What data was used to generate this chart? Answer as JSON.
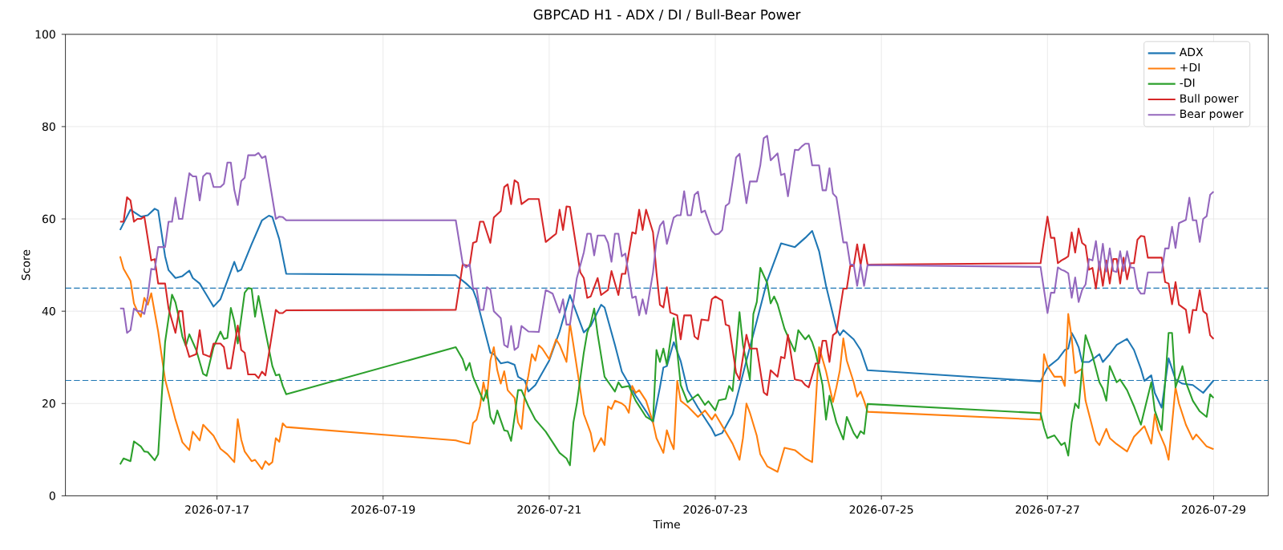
{
  "chart_data": {
    "type": "line",
    "title": "GBPCAD H1 - ADX / DI / Bull-Bear Power",
    "xlabel": "Time",
    "ylabel": "Score",
    "xlim": [
      "2026-07-15T04:12",
      "2026-07-29T15:48"
    ],
    "ylim": [
      0,
      100
    ],
    "xticks": [
      "2026-07-17",
      "2026-07-19",
      "2026-07-21",
      "2026-07-23",
      "2026-07-25",
      "2026-07-27",
      "2026-07-29"
    ],
    "yticks": [
      0,
      20,
      40,
      60,
      80,
      100
    ],
    "grid": true,
    "legend": "top right",
    "ref_lines": [
      {
        "axis": "y",
        "value": 45,
        "color": "#1f77b4",
        "line_style": "dashed"
      },
      {
        "axis": "y",
        "value": 25,
        "color": "#1f77b4",
        "line_style": "dashed"
      }
    ],
    "series": [
      {
        "name": "ADX",
        "color": "#1f77b4",
        "x": [
          "2026-07-15T20:00",
          "2026-07-15T23:00",
          "2026-07-16T02:00",
          "2026-07-16T04:00",
          "2026-07-16T06:00",
          "2026-07-16T07:00",
          "2026-07-16T09:00",
          "2026-07-16T10:00",
          "2026-07-16T12:00",
          "2026-07-16T14:00",
          "2026-07-16T16:00",
          "2026-07-16T17:00",
          "2026-07-16T19:00",
          "2026-07-16T21:00",
          "2026-07-16T23:00",
          "2026-07-17T01:00",
          "2026-07-17T03:00",
          "2026-07-17T05:00",
          "2026-07-17T06:00",
          "2026-07-17T07:00",
          "2026-07-17T10:00",
          "2026-07-17T13:00",
          "2026-07-17T15:00",
          "2026-07-17T16:00",
          "2026-07-17T18:00",
          "2026-07-17T20:00",
          "2026-07-19T21:00",
          "2026-07-20T00:00",
          "2026-07-20T02:00",
          "2026-07-20T03:00",
          "2026-07-20T05:00",
          "2026-07-20T07:00",
          "2026-07-20T08:00",
          "2026-07-20T10:00",
          "2026-07-20T12:00",
          "2026-07-20T14:00",
          "2026-07-20T15:00",
          "2026-07-20T17:00",
          "2026-07-20T18:00",
          "2026-07-20T20:00",
          "2026-07-21T00:00",
          "2026-07-21T03:00",
          "2026-07-21T06:00",
          "2026-07-21T09:00",
          "2026-07-21T10:00",
          "2026-07-21T12:00",
          "2026-07-21T15:00",
          "2026-07-21T16:00",
          "2026-07-21T19:00",
          "2026-07-21T21:00",
          "2026-07-22T01:00",
          "2026-07-22T04:00",
          "2026-07-22T06:00",
          "2026-07-22T08:00",
          "2026-07-22T09:00",
          "2026-07-22T10:00",
          "2026-07-22T12:00",
          "2026-07-22T14:00",
          "2026-07-22T16:00",
          "2026-07-22T19:00",
          "2026-07-22T21:00",
          "2026-07-22T23:00",
          "2026-07-23T00:00",
          "2026-07-23T02:00",
          "2026-07-23T05:00",
          "2026-07-23T09:00",
          "2026-07-23T12:00",
          "2026-07-23T15:00",
          "2026-07-23T19:00",
          "2026-07-23T23:00",
          "2026-07-24T02:00",
          "2026-07-24T04:00",
          "2026-07-24T06:00",
          "2026-07-24T08:00",
          "2026-07-24T11:00",
          "2026-07-24T12:00",
          "2026-07-24T13:00",
          "2026-07-24T16:00",
          "2026-07-24T18:00",
          "2026-07-24T20:00",
          "2026-07-26T22:00",
          "2026-07-27T00:00",
          "2026-07-27T03:00",
          "2026-07-27T05:00",
          "2026-07-27T06:00",
          "2026-07-27T07:00",
          "2026-07-27T08:00",
          "2026-07-27T09:00",
          "2026-07-27T10:00",
          "2026-07-27T12:00",
          "2026-07-27T14:00",
          "2026-07-27T15:00",
          "2026-07-27T16:00",
          "2026-07-27T18:00",
          "2026-07-27T20:00",
          "2026-07-27T23:00",
          "2026-07-28T01:00",
          "2026-07-28T03:00",
          "2026-07-28T04:00",
          "2026-07-28T06:00",
          "2026-07-28T07:00",
          "2026-07-28T09:00",
          "2026-07-28T11:00",
          "2026-07-28T13:00",
          "2026-07-28T15:00",
          "2026-07-28T18:00",
          "2026-07-28T21:00",
          "2026-07-29T00:00"
        ],
        "values": [
          57.6,
          62.0,
          60.5,
          60.8,
          62.2,
          61.8,
          51.9,
          48.9,
          47.2,
          47.6,
          48.8,
          47.2,
          46.0,
          43.5,
          41.0,
          42.6,
          46.6,
          50.7,
          48.6,
          49.0,
          54.5,
          59.7,
          60.7,
          60.4,
          55.6,
          48.1,
          47.8,
          46.0,
          44.6,
          42.6,
          36.8,
          31.0,
          30.7,
          28.7,
          29.0,
          28.4,
          25.8,
          24.9,
          22.6,
          24.0,
          29.3,
          35.6,
          43.5,
          37.4,
          35.4,
          36.8,
          41.4,
          40.8,
          32.7,
          26.9,
          21.7,
          18.3,
          15.9,
          23.5,
          27.8,
          28.1,
          33.3,
          29.2,
          22.9,
          19.1,
          16.8,
          14.5,
          13.0,
          13.6,
          17.7,
          29.3,
          37.9,
          46.6,
          54.7,
          53.9,
          55.9,
          57.4,
          53.0,
          45.5,
          36.2,
          34.8,
          35.9,
          33.9,
          31.6,
          27.2,
          24.8,
          27.8,
          29.6,
          31.6,
          31.9,
          35.3,
          33.9,
          32.2,
          29.0,
          29.0,
          30.1,
          30.7,
          29.0,
          30.7,
          32.7,
          34.0,
          31.6,
          27.5,
          24.9,
          26.1,
          22.3,
          19.1,
          29.8,
          25.2,
          24.3,
          24.0,
          22.3,
          25.0
        ]
      },
      {
        "name": "+DI",
        "color": "#ff7f0e",
        "x": [
          "2026-07-15T20:00",
          "2026-07-15T21:00",
          "2026-07-15T23:00",
          "2026-07-16T00:00",
          "2026-07-16T01:00",
          "2026-07-16T02:00",
          "2026-07-16T03:00",
          "2026-07-16T04:00",
          "2026-07-16T05:00",
          "2026-07-16T07:00",
          "2026-07-16T09:00",
          "2026-07-16T12:00",
          "2026-07-16T14:00",
          "2026-07-16T16:00",
          "2026-07-16T17:00",
          "2026-07-16T19:00",
          "2026-07-16T20:00",
          "2026-07-16T23:00",
          "2026-07-17T01:00",
          "2026-07-17T03:00",
          "2026-07-17T05:00",
          "2026-07-17T06:00",
          "2026-07-17T07:00",
          "2026-07-17T08:00",
          "2026-07-17T10:00",
          "2026-07-17T11:00",
          "2026-07-17T13:00",
          "2026-07-17T14:00",
          "2026-07-17T15:00",
          "2026-07-17T16:00",
          "2026-07-17T17:00",
          "2026-07-17T18:00",
          "2026-07-17T19:00",
          "2026-07-17T20:00",
          "2026-07-19T21:00",
          "2026-07-19T22:00",
          "2026-07-20T00:00",
          "2026-07-20T01:00",
          "2026-07-20T02:00",
          "2026-07-20T03:00",
          "2026-07-20T04:00",
          "2026-07-20T05:00",
          "2026-07-20T06:00",
          "2026-07-20T07:00",
          "2026-07-20T08:00",
          "2026-07-20T09:00",
          "2026-07-20T10:00",
          "2026-07-20T11:00",
          "2026-07-20T12:00",
          "2026-07-20T14:00",
          "2026-07-20T15:00",
          "2026-07-20T16:00",
          "2026-07-20T17:00",
          "2026-07-20T18:00",
          "2026-07-20T19:00",
          "2026-07-20T20:00",
          "2026-07-20T21:00",
          "2026-07-20T22:00",
          "2026-07-21T00:00",
          "2026-07-21T02:00",
          "2026-07-21T03:00",
          "2026-07-21T05:00",
          "2026-07-21T06:00",
          "2026-07-21T07:00",
          "2026-07-21T09:00",
          "2026-07-21T10:00",
          "2026-07-21T12:00",
          "2026-07-21T13:00",
          "2026-07-21T15:00",
          "2026-07-21T16:00",
          "2026-07-21T17:00",
          "2026-07-21T18:00",
          "2026-07-21T19:00",
          "2026-07-21T21:00",
          "2026-07-21T22:00",
          "2026-07-21T23:00",
          "2026-07-22T00:00",
          "2026-07-22T01:00",
          "2026-07-22T02:00",
          "2026-07-22T04:00",
          "2026-07-22T06:00",
          "2026-07-22T07:00",
          "2026-07-22T09:00",
          "2026-07-22T10:00",
          "2026-07-22T11:00",
          "2026-07-22T12:00",
          "2026-07-22T13:00",
          "2026-07-22T14:00",
          "2026-07-22T16:00",
          "2026-07-22T19:00",
          "2026-07-22T21:00",
          "2026-07-22T23:00",
          "2026-07-23T00:00",
          "2026-07-23T05:00",
          "2026-07-23T07:00",
          "2026-07-23T08:00",
          "2026-07-23T09:00",
          "2026-07-23T10:00",
          "2026-07-23T12:00",
          "2026-07-23T13:00",
          "2026-07-23T15:00",
          "2026-07-23T18:00",
          "2026-07-23T20:00",
          "2026-07-23T23:00",
          "2026-07-24T02:00",
          "2026-07-24T04:00",
          "2026-07-24T06:00",
          "2026-07-24T08:00",
          "2026-07-24T10:00",
          "2026-07-24T11:00",
          "2026-07-24T12:00",
          "2026-07-24T13:00",
          "2026-07-24T14:00",
          "2026-07-24T16:00",
          "2026-07-24T17:00",
          "2026-07-24T18:00",
          "2026-07-24T19:00",
          "2026-07-24T20:00",
          "2026-07-26T22:00",
          "2026-07-26T23:00",
          "2026-07-27T00:00",
          "2026-07-27T02:00",
          "2026-07-27T04:00",
          "2026-07-27T05:00",
          "2026-07-27T06:00",
          "2026-07-27T07:00",
          "2026-07-27T08:00",
          "2026-07-27T10:00",
          "2026-07-27T11:00",
          "2026-07-27T14:00",
          "2026-07-27T15:00",
          "2026-07-27T17:00",
          "2026-07-27T18:00",
          "2026-07-27T20:00",
          "2026-07-27T23:00",
          "2026-07-28T01:00",
          "2026-07-28T04:00",
          "2026-07-28T06:00",
          "2026-07-28T07:00",
          "2026-07-28T08:00",
          "2026-07-28T10:00",
          "2026-07-28T11:00",
          "2026-07-28T13:00",
          "2026-07-28T14:00",
          "2026-07-28T16:00",
          "2026-07-28T18:00",
          "2026-07-28T19:00",
          "2026-07-28T22:00",
          "2026-07-29T00:00"
        ],
        "values": [
          51.9,
          49.2,
          46.6,
          41.7,
          40.0,
          38.8,
          42.9,
          41.4,
          43.9,
          35.6,
          25.2,
          16.5,
          11.6,
          9.9,
          13.9,
          12.0,
          15.4,
          13.0,
          10.2,
          9.0,
          7.3,
          16.6,
          12.2,
          9.6,
          7.5,
          7.8,
          5.8,
          7.5,
          6.7,
          7.3,
          12.5,
          11.7,
          15.7,
          14.9,
          12.0,
          11.8,
          11.4,
          11.3,
          15.8,
          16.5,
          19.4,
          24.6,
          21.2,
          29.3,
          32.2,
          27.2,
          24.3,
          27.0,
          22.9,
          21.2,
          15.9,
          14.5,
          22.3,
          26.1,
          30.7,
          29.3,
          32.6,
          31.9,
          29.6,
          33.9,
          32.7,
          29.0,
          37.4,
          32.7,
          22.9,
          17.7,
          13.6,
          9.6,
          12.5,
          11.0,
          19.4,
          18.8,
          20.6,
          20.0,
          19.4,
          18.0,
          23.8,
          22.3,
          22.9,
          20.6,
          15.9,
          12.5,
          9.3,
          14.2,
          11.9,
          10.1,
          24.9,
          20.6,
          19.4,
          17.1,
          18.5,
          16.5,
          17.7,
          11.3,
          7.8,
          12.5,
          20.0,
          18.0,
          13.0,
          9.0,
          6.4,
          5.2,
          10.4,
          9.9,
          8.1,
          7.3,
          32.2,
          27.0,
          20.3,
          23.5,
          27.2,
          34.1,
          29.3,
          24.6,
          21.5,
          22.6,
          20.6,
          18.2,
          16.5,
          30.7,
          28.1,
          25.8,
          25.8,
          23.8,
          39.4,
          34.2,
          26.6,
          27.5,
          20.6,
          11.9,
          11.0,
          14.5,
          12.5,
          11.2,
          9.6,
          12.8,
          15.1,
          11.3,
          17.7,
          14.2,
          10.7,
          7.8,
          23.5,
          20.0,
          15.4,
          12.2,
          13.3,
          10.7,
          10.1
        ]
      },
      {
        "name": "-DI",
        "color": "#2ca02c",
        "x": [
          "2026-07-15T20:00",
          "2026-07-15T21:00",
          "2026-07-15T23:00",
          "2026-07-16T00:00",
          "2026-07-16T02:00",
          "2026-07-16T03:00",
          "2026-07-16T04:00",
          "2026-07-16T06:00",
          "2026-07-16T07:00",
          "2026-07-16T09:00",
          "2026-07-16T11:00",
          "2026-07-16T12:00",
          "2026-07-16T13:00",
          "2026-07-16T14:00",
          "2026-07-16T15:00",
          "2026-07-16T16:00",
          "2026-07-16T18:00",
          "2026-07-16T20:00",
          "2026-07-16T21:00",
          "2026-07-16T23:00",
          "2026-07-17T01:00",
          "2026-07-17T02:00",
          "2026-07-17T03:00",
          "2026-07-17T04:00",
          "2026-07-17T05:00",
          "2026-07-17T06:00",
          "2026-07-17T08:00",
          "2026-07-17T09:00",
          "2026-07-17T10:00",
          "2026-07-17T11:00",
          "2026-07-17T12:00",
          "2026-07-17T14:00",
          "2026-07-17T16:00",
          "2026-07-17T17:00",
          "2026-07-17T18:00",
          "2026-07-17T19:00",
          "2026-07-17T20:00",
          "2026-07-19T21:00",
          "2026-07-19T23:00",
          "2026-07-20T00:00",
          "2026-07-20T01:00",
          "2026-07-20T02:00",
          "2026-07-20T04:00",
          "2026-07-20T05:00",
          "2026-07-20T06:00",
          "2026-07-20T07:00",
          "2026-07-20T08:00",
          "2026-07-20T09:00",
          "2026-07-20T11:00",
          "2026-07-20T12:00",
          "2026-07-20T13:00",
          "2026-07-20T14:00",
          "2026-07-20T15:00",
          "2026-07-20T16:00",
          "2026-07-20T18:00",
          "2026-07-20T20:00",
          "2026-07-20T23:00",
          "2026-07-21T01:00",
          "2026-07-21T03:00",
          "2026-07-21T05:00",
          "2026-07-21T06:00",
          "2026-07-21T07:00",
          "2026-07-21T08:00",
          "2026-07-21T10:00",
          "2026-07-21T11:00",
          "2026-07-21T12:00",
          "2026-07-21T13:00",
          "2026-07-21T14:00",
          "2026-07-21T16:00",
          "2026-07-21T19:00",
          "2026-07-21T20:00",
          "2026-07-21T21:00",
          "2026-07-21T23:00",
          "2026-07-22T01:00",
          "2026-07-22T04:00",
          "2026-07-22T06:00",
          "2026-07-22T07:00",
          "2026-07-22T08:00",
          "2026-07-22T09:00",
          "2026-07-22T10:00",
          "2026-07-22T12:00",
          "2026-07-22T14:00",
          "2026-07-22T16:00",
          "2026-07-22T19:00",
          "2026-07-22T21:00",
          "2026-07-22T22:00",
          "2026-07-23T00:00",
          "2026-07-23T01:00",
          "2026-07-23T03:00",
          "2026-07-23T04:00",
          "2026-07-23T05:00",
          "2026-07-23T06:00",
          "2026-07-23T07:00",
          "2026-07-23T08:00",
          "2026-07-23T10:00",
          "2026-07-23T11:00",
          "2026-07-23T12:00",
          "2026-07-23T13:00",
          "2026-07-23T15:00",
          "2026-07-23T16:00",
          "2026-07-23T17:00",
          "2026-07-23T18:00",
          "2026-07-23T20:00",
          "2026-07-23T21:00",
          "2026-07-23T23:00",
          "2026-07-24T00:00",
          "2026-07-24T02:00",
          "2026-07-24T03:00",
          "2026-07-24T04:00",
          "2026-07-24T05:00",
          "2026-07-24T07:00",
          "2026-07-24T08:00",
          "2026-07-24T09:00",
          "2026-07-24T11:00",
          "2026-07-24T13:00",
          "2026-07-24T14:00",
          "2026-07-24T16:00",
          "2026-07-24T17:00",
          "2026-07-24T18:00",
          "2026-07-24T19:00",
          "2026-07-24T20:00",
          "2026-07-26T22:00",
          "2026-07-26T23:00",
          "2026-07-27T00:00",
          "2026-07-27T02:00",
          "2026-07-27T04:00",
          "2026-07-27T05:00",
          "2026-07-27T06:00",
          "2026-07-27T07:00",
          "2026-07-27T08:00",
          "2026-07-27T09:00",
          "2026-07-27T10:00",
          "2026-07-27T11:00",
          "2026-07-27T13:00",
          "2026-07-27T15:00",
          "2026-07-27T16:00",
          "2026-07-27T17:00",
          "2026-07-27T18:00",
          "2026-07-27T20:00",
          "2026-07-27T21:00",
          "2026-07-27T23:00",
          "2026-07-28T01:00",
          "2026-07-28T03:00",
          "2026-07-28T06:00",
          "2026-07-28T07:00",
          "2026-07-28T09:00",
          "2026-07-28T11:00",
          "2026-07-28T12:00",
          "2026-07-28T13:00",
          "2026-07-28T15:00",
          "2026-07-28T16:00",
          "2026-07-28T18:00",
          "2026-07-28T20:00",
          "2026-07-28T22:00",
          "2026-07-28T23:00",
          "2026-07-29T00:00"
        ],
        "values": [
          6.8,
          8.1,
          7.5,
          11.8,
          10.7,
          9.6,
          9.5,
          7.7,
          9.0,
          33.3,
          43.6,
          41.9,
          38.5,
          34.5,
          32.5,
          35.0,
          31.6,
          26.4,
          26.0,
          32.2,
          35.6,
          34.0,
          34.2,
          40.7,
          37.8,
          33.0,
          44.0,
          45.0,
          44.9,
          38.8,
          43.3,
          35.6,
          28.1,
          26.1,
          26.3,
          23.8,
          22.0,
          32.2,
          29.6,
          27.2,
          28.8,
          25.8,
          22.3,
          20.6,
          22.9,
          17.1,
          15.6,
          18.5,
          14.2,
          14.0,
          11.9,
          17.1,
          22.9,
          22.9,
          19.4,
          16.5,
          13.9,
          11.6,
          9.3,
          8.1,
          6.6,
          15.9,
          20.0,
          31.0,
          35.4,
          37.4,
          40.6,
          35.0,
          25.8,
          22.6,
          24.6,
          23.5,
          23.8,
          20.6,
          17.1,
          16.2,
          31.6,
          29.0,
          31.9,
          28.4,
          38.5,
          24.0,
          20.3,
          22.0,
          19.7,
          20.5,
          18.5,
          20.7,
          21.0,
          23.8,
          22.7,
          31.0,
          39.8,
          32.7,
          25.2,
          39.4,
          42.0,
          49.4,
          46.1,
          41.7,
          43.2,
          41.5,
          36.2,
          34.5,
          31.3,
          35.9,
          33.9,
          34.8,
          33.3,
          31.0,
          24.0,
          16.5,
          21.7,
          15.9,
          12.2,
          17.1,
          13.6,
          12.5,
          14.0,
          13.4,
          19.9,
          17.9,
          14.8,
          12.5,
          13.1,
          11.0,
          11.5,
          8.7,
          15.9,
          20.0,
          19.0,
          27.5,
          34.8,
          30.4,
          24.6,
          23.2,
          20.6,
          28.1,
          24.6,
          25.2,
          22.9,
          19.4,
          15.4,
          24.6,
          18.5,
          14.2,
          35.3,
          35.3,
          23.5,
          28.1,
          24.6,
          20.6,
          18.3,
          17.1,
          22.0,
          21.2
        ]
      },
      {
        "name": "Bull power",
        "color": "#d62728",
        "x": [
          "2026-07-15T20:00",
          "2026-07-15T21:00",
          "2026-07-15T22:00",
          "2026-07-15T23:00",
          "2026-07-16T00:00",
          "2026-07-16T01:00",
          "2026-07-16T02:00",
          "2026-07-16T03:00",
          "2026-07-16T05:00",
          "2026-07-16T06:00",
          "2026-07-16T07:00",
          "2026-07-16T09:00",
          "2026-07-16T10:00",
          "2026-07-16T12:00",
          "2026-07-16T13:00",
          "2026-07-16T14:00",
          "2026-07-16T15:00",
          "2026-07-16T16:00",
          "2026-07-16T18:00",
          "2026-07-16T19:00",
          "2026-07-16T20:00",
          "2026-07-16T22:00",
          "2026-07-16T23:00",
          "2026-07-17T01:00",
          "2026-07-17T02:00",
          "2026-07-17T03:00",
          "2026-07-17T04:00",
          "2026-07-17T06:00",
          "2026-07-17T07:00",
          "2026-07-17T08:00",
          "2026-07-17T09:00",
          "2026-07-17T11:00",
          "2026-07-17T12:00",
          "2026-07-17T13:00",
          "2026-07-17T14:00",
          "2026-07-17T17:00",
          "2026-07-17T18:00",
          "2026-07-17T19:00",
          "2026-07-17T20:00",
          "2026-07-19T21:00",
          "2026-07-19T23:00",
          "2026-07-20T01:00",
          "2026-07-20T02:00",
          "2026-07-20T03:00",
          "2026-07-20T04:00",
          "2026-07-20T05:00",
          "2026-07-20T07:00",
          "2026-07-20T08:00",
          "2026-07-20T10:00",
          "2026-07-20T11:00",
          "2026-07-20T12:00",
          "2026-07-20T13:00",
          "2026-07-20T14:00",
          "2026-07-20T15:00",
          "2026-07-20T16:00",
          "2026-07-20T18:00",
          "2026-07-20T21:00",
          "2026-07-20T23:00",
          "2026-07-21T01:00",
          "2026-07-21T02:00",
          "2026-07-21T03:00",
          "2026-07-21T04:00",
          "2026-07-21T05:00",
          "2026-07-21T06:00",
          "2026-07-21T09:00",
          "2026-07-21T10:00",
          "2026-07-21T11:00",
          "2026-07-21T12:00",
          "2026-07-21T14:00",
          "2026-07-21T15:00",
          "2026-07-21T17:00",
          "2026-07-21T18:00",
          "2026-07-21T20:00",
          "2026-07-21T21:00",
          "2026-07-21T22:00",
          "2026-07-22T00:00",
          "2026-07-22T01:00",
          "2026-07-22T02:00",
          "2026-07-22T03:00",
          "2026-07-22T04:00",
          "2026-07-22T06:00",
          "2026-07-22T07:00",
          "2026-07-22T08:00",
          "2026-07-22T09:00",
          "2026-07-22T10:00",
          "2026-07-22T11:00",
          "2026-07-22T13:00",
          "2026-07-22T14:00",
          "2026-07-22T15:00",
          "2026-07-22T17:00",
          "2026-07-22T18:00",
          "2026-07-22T19:00",
          "2026-07-22T20:00",
          "2026-07-22T22:00",
          "2026-07-22T23:00",
          "2026-07-23T00:00",
          "2026-07-23T02:00",
          "2026-07-23T03:00",
          "2026-07-23T04:00",
          "2026-07-23T06:00",
          "2026-07-23T07:00",
          "2026-07-23T09:00",
          "2026-07-23T10:00",
          "2026-07-23T12:00",
          "2026-07-23T14:00",
          "2026-07-23T15:00",
          "2026-07-23T16:00",
          "2026-07-23T18:00",
          "2026-07-23T19:00",
          "2026-07-23T20:00",
          "2026-07-23T21:00",
          "2026-07-23T23:00",
          "2026-07-24T01:00",
          "2026-07-24T02:00",
          "2026-07-24T03:00",
          "2026-07-24T05:00",
          "2026-07-24T06:00",
          "2026-07-24T07:00",
          "2026-07-24T08:00",
          "2026-07-24T09:00",
          "2026-07-24T10:00",
          "2026-07-24T11:00",
          "2026-07-24T13:00",
          "2026-07-24T14:00",
          "2026-07-24T15:00",
          "2026-07-24T16:00",
          "2026-07-24T17:00",
          "2026-07-24T18:00",
          "2026-07-24T19:00",
          "2026-07-24T20:00",
          "2026-07-26T22:00",
          "2026-07-27T00:00",
          "2026-07-27T01:00",
          "2026-07-27T02:00",
          "2026-07-27T03:00",
          "2026-07-27T04:00",
          "2026-07-27T05:00",
          "2026-07-27T06:00",
          "2026-07-27T07:00",
          "2026-07-27T08:00",
          "2026-07-27T09:00",
          "2026-07-27T10:00",
          "2026-07-27T11:00",
          "2026-07-27T12:00",
          "2026-07-27T13:00",
          "2026-07-27T14:00",
          "2026-07-27T15:00",
          "2026-07-27T16:00",
          "2026-07-27T17:00",
          "2026-07-27T18:00",
          "2026-07-27T19:00",
          "2026-07-27T20:00",
          "2026-07-27T21:00",
          "2026-07-27T22:00",
          "2026-07-27T23:00",
          "2026-07-28T00:00",
          "2026-07-28T01:00",
          "2026-07-28T02:00",
          "2026-07-28T03:00",
          "2026-07-28T04:00",
          "2026-07-28T05:00",
          "2026-07-28T09:00",
          "2026-07-28T10:00",
          "2026-07-28T11:00",
          "2026-07-28T12:00",
          "2026-07-28T13:00",
          "2026-07-28T14:00",
          "2026-07-28T16:00",
          "2026-07-28T17:00",
          "2026-07-28T18:00",
          "2026-07-28T19:00",
          "2026-07-28T20:00",
          "2026-07-28T21:00",
          "2026-07-28T22:00",
          "2026-07-28T23:00",
          "2026-07-29T00:00"
        ],
        "values": [
          59.4,
          59.4,
          64.7,
          64.0,
          59.4,
          60.0,
          60.0,
          60.5,
          51.0,
          51.3,
          46.0,
          46.0,
          40.6,
          35.3,
          40.0,
          40.0,
          32.7,
          30.1,
          30.7,
          35.9,
          30.7,
          30.1,
          33.0,
          33.0,
          32.2,
          27.6,
          27.6,
          36.9,
          31.6,
          31.0,
          26.3,
          26.3,
          25.5,
          26.9,
          26.1,
          40.3,
          39.6,
          39.6,
          40.2,
          40.3,
          50.1,
          49.8,
          54.8,
          55.1,
          59.4,
          59.4,
          54.8,
          60.3,
          61.7,
          66.9,
          67.5,
          63.2,
          68.4,
          67.8,
          63.2,
          64.3,
          64.3,
          55.0,
          56.2,
          56.8,
          62.0,
          57.6,
          62.7,
          62.6,
          48.4,
          47.2,
          42.9,
          43.2,
          47.2,
          43.5,
          44.6,
          48.7,
          43.5,
          48.1,
          48.1,
          57.1,
          56.8,
          62.0,
          57.6,
          62.0,
          57.1,
          48.4,
          41.4,
          40.8,
          45.2,
          39.7,
          39.1,
          33.9,
          39.1,
          39.1,
          34.5,
          33.9,
          38.2,
          38.0,
          42.6,
          43.2,
          42.3,
          37.1,
          36.8,
          26.7,
          25.2,
          34.9,
          31.9,
          31.9,
          22.4,
          21.8,
          27.2,
          25.8,
          30.1,
          29.8,
          34.9,
          25.2,
          24.9,
          24.0,
          23.5,
          28.7,
          28.7,
          33.6,
          33.6,
          29.0,
          34.8,
          35.4,
          44.9,
          44.9,
          49.8,
          49.8,
          54.5,
          50.0,
          54.5,
          50.1,
          50.4,
          60.5,
          55.9,
          55.9,
          50.4,
          51.0,
          51.4,
          51.9,
          57.1,
          52.7,
          57.9,
          54.8,
          54.2,
          49.0,
          49.4,
          44.9,
          50.7,
          45.5,
          51.0,
          46.0,
          51.3,
          51.3,
          46.0,
          51.6,
          46.9,
          50.4,
          50.4,
          55.5,
          56.3,
          56.2,
          51.6,
          51.6,
          46.3,
          46.0,
          41.5,
          46.3,
          41.4,
          40.3,
          35.3,
          40.3,
          40.2,
          44.6,
          40.0,
          39.4,
          34.8,
          34.0
        ]
      },
      {
        "name": "Bear power",
        "color": "#9467bd",
        "x": [
          "2026-07-15T20:00",
          "2026-07-15T21:00",
          "2026-07-15T22:00",
          "2026-07-15T23:00",
          "2026-07-16T00:00",
          "2026-07-16T01:00",
          "2026-07-16T02:00",
          "2026-07-16T03:00",
          "2026-07-16T04:00",
          "2026-07-16T05:00",
          "2026-07-16T06:00",
          "2026-07-16T07:00",
          "2026-07-16T09:00",
          "2026-07-16T10:00",
          "2026-07-16T11:00",
          "2026-07-16T12:00",
          "2026-07-16T13:00",
          "2026-07-16T14:00",
          "2026-07-16T16:00",
          "2026-07-16T17:00",
          "2026-07-16T18:00",
          "2026-07-16T19:00",
          "2026-07-16T20:00",
          "2026-07-16T21:00",
          "2026-07-16T22:00",
          "2026-07-16T23:00",
          "2026-07-17T01:00",
          "2026-07-17T02:00",
          "2026-07-17T03:00",
          "2026-07-17T04:00",
          "2026-07-17T05:00",
          "2026-07-17T06:00",
          "2026-07-17T07:00",
          "2026-07-17T08:00",
          "2026-07-17T09:00",
          "2026-07-17T11:00",
          "2026-07-17T12:00",
          "2026-07-17T13:00",
          "2026-07-17T14:00",
          "2026-07-17T17:00",
          "2026-07-17T18:00",
          "2026-07-17T19:00",
          "2026-07-17T20:00",
          "2026-07-19T21:00",
          "2026-07-19T23:00",
          "2026-07-20T00:00",
          "2026-07-20T01:00",
          "2026-07-20T02:00",
          "2026-07-20T03:00",
          "2026-07-20T04:00",
          "2026-07-20T05:00",
          "2026-07-20T06:00",
          "2026-07-20T07:00",
          "2026-07-20T08:00",
          "2026-07-20T10:00",
          "2026-07-20T11:00",
          "2026-07-20T12:00",
          "2026-07-20T13:00",
          "2026-07-20T14:00",
          "2026-07-20T15:00",
          "2026-07-20T16:00",
          "2026-07-20T18:00",
          "2026-07-20T21:00",
          "2026-07-20T23:00",
          "2026-07-21T01:00",
          "2026-07-21T03:00",
          "2026-07-21T04:00",
          "2026-07-21T05:00",
          "2026-07-21T06:00",
          "2026-07-21T08:00",
          "2026-07-21T10:00",
          "2026-07-21T11:00",
          "2026-07-21T12:00",
          "2026-07-21T13:00",
          "2026-07-21T14:00",
          "2026-07-21T16:00",
          "2026-07-21T17:00",
          "2026-07-21T18:00",
          "2026-07-21T19:00",
          "2026-07-21T20:00",
          "2026-07-21T21:00",
          "2026-07-21T22:00",
          "2026-07-22T00:00",
          "2026-07-22T01:00",
          "2026-07-22T02:00",
          "2026-07-22T03:00",
          "2026-07-22T04:00",
          "2026-07-22T06:00",
          "2026-07-22T07:00",
          "2026-07-22T08:00",
          "2026-07-22T09:00",
          "2026-07-22T10:00",
          "2026-07-22T12:00",
          "2026-07-22T13:00",
          "2026-07-22T14:00",
          "2026-07-22T15:00",
          "2026-07-22T16:00",
          "2026-07-22T17:00",
          "2026-07-22T18:00",
          "2026-07-22T19:00",
          "2026-07-22T20:00",
          "2026-07-22T21:00",
          "2026-07-22T23:00",
          "2026-07-23T00:00",
          "2026-07-23T01:00",
          "2026-07-23T02:00",
          "2026-07-23T03:00",
          "2026-07-23T04:00",
          "2026-07-23T05:00",
          "2026-07-23T06:00",
          "2026-07-23T07:00",
          "2026-07-23T09:00",
          "2026-07-23T10:00",
          "2026-07-23T12:00",
          "2026-07-23T13:00",
          "2026-07-23T14:00",
          "2026-07-23T15:00",
          "2026-07-23T16:00",
          "2026-07-23T18:00",
          "2026-07-23T19:00",
          "2026-07-23T20:00",
          "2026-07-23T21:00",
          "2026-07-23T23:00",
          "2026-07-24T00:00",
          "2026-07-24T01:00",
          "2026-07-24T02:00",
          "2026-07-24T03:00",
          "2026-07-24T04:00",
          "2026-07-24T06:00",
          "2026-07-24T07:00",
          "2026-07-24T08:00",
          "2026-07-24T09:00",
          "2026-07-24T10:00",
          "2026-07-24T11:00",
          "2026-07-24T13:00",
          "2026-07-24T14:00",
          "2026-07-24T15:00",
          "2026-07-24T16:00",
          "2026-07-24T17:00",
          "2026-07-24T18:00",
          "2026-07-24T19:00",
          "2026-07-24T20:00",
          "2026-07-26T22:00",
          "2026-07-27T00:00",
          "2026-07-27T01:00",
          "2026-07-27T02:00",
          "2026-07-27T03:00",
          "2026-07-27T04:00",
          "2026-07-27T05:00",
          "2026-07-27T06:00",
          "2026-07-27T07:00",
          "2026-07-27T08:00",
          "2026-07-27T09:00",
          "2026-07-27T10:00",
          "2026-07-27T11:00",
          "2026-07-27T12:00",
          "2026-07-27T13:00",
          "2026-07-27T14:00",
          "2026-07-27T15:00",
          "2026-07-27T16:00",
          "2026-07-27T17:00",
          "2026-07-27T18:00",
          "2026-07-27T19:00",
          "2026-07-27T20:00",
          "2026-07-27T21:00",
          "2026-07-27T22:00",
          "2026-07-27T23:00",
          "2026-07-28T00:00",
          "2026-07-28T01:00",
          "2026-07-28T02:00",
          "2026-07-28T03:00",
          "2026-07-28T04:00",
          "2026-07-28T05:00",
          "2026-07-28T09:00",
          "2026-07-28T10:00",
          "2026-07-28T11:00",
          "2026-07-28T12:00",
          "2026-07-28T13:00",
          "2026-07-28T14:00",
          "2026-07-28T16:00",
          "2026-07-28T17:00",
          "2026-07-28T18:00",
          "2026-07-28T19:00",
          "2026-07-28T20:00",
          "2026-07-28T21:00",
          "2026-07-28T22:00",
          "2026-07-28T23:00",
          "2026-07-29T00:00"
        ],
        "values": [
          40.6,
          40.6,
          35.3,
          35.9,
          40.6,
          40.0,
          40.0,
          39.4,
          43.2,
          49.2,
          49.0,
          53.9,
          53.9,
          59.4,
          59.4,
          64.6,
          60.0,
          60.0,
          69.9,
          69.2,
          69.2,
          64.0,
          69.2,
          69.9,
          69.8,
          66.9,
          66.9,
          67.6,
          72.2,
          72.2,
          66.3,
          63.0,
          68.2,
          68.9,
          73.8,
          73.8,
          74.3,
          73.2,
          73.6,
          60.0,
          60.5,
          60.4,
          59.7,
          59.7,
          50.4,
          49.5,
          50.2,
          44.9,
          44.9,
          40.3,
          40.3,
          45.2,
          44.7,
          40.0,
          38.5,
          32.7,
          32.2,
          36.8,
          31.6,
          32.2,
          36.8,
          35.6,
          35.5,
          44.6,
          43.8,
          39.7,
          42.6,
          37.1,
          37.1,
          47.2,
          52.7,
          56.8,
          56.8,
          52.1,
          56.4,
          56.4,
          54.8,
          50.7,
          56.8,
          56.8,
          51.9,
          52.5,
          42.9,
          43.2,
          39.1,
          42.6,
          39.4,
          48.4,
          55.3,
          58.5,
          59.5,
          54.6,
          60.3,
          60.8,
          60.8,
          66.0,
          60.8,
          60.8,
          65.2,
          65.9,
          61.4,
          61.8,
          57.4,
          56.6,
          56.8,
          57.6,
          62.8,
          63.4,
          68.1,
          73.3,
          74.1,
          63.4,
          68.1,
          68.1,
          71.6,
          77.5,
          78.0,
          72.7,
          74.2,
          69.5,
          69.8,
          64.9,
          75.0,
          74.9,
          75.7,
          76.3,
          76.3,
          71.6,
          71.6,
          66.2,
          66.2,
          71.0,
          65.5,
          64.7,
          54.9,
          54.9,
          50.1,
          50.1,
          45.5,
          50.1,
          45.5,
          50.0,
          49.6,
          39.6,
          44.0,
          44.0,
          49.5,
          49.0,
          48.7,
          48.2,
          42.9,
          47.3,
          42.0,
          44.6,
          45.8,
          51.3,
          51.0,
          55.2,
          49.0,
          54.6,
          48.6,
          53.6,
          48.7,
          48.5,
          53.0,
          48.7,
          53.0,
          49.5,
          49.4,
          44.9,
          43.8,
          43.8,
          48.4,
          48.4,
          53.6,
          53.6,
          58.3,
          53.7,
          59.1,
          59.8,
          64.6,
          59.7,
          59.7,
          55.0,
          60.0,
          60.6,
          65.2,
          65.9
        ]
      }
    ]
  }
}
